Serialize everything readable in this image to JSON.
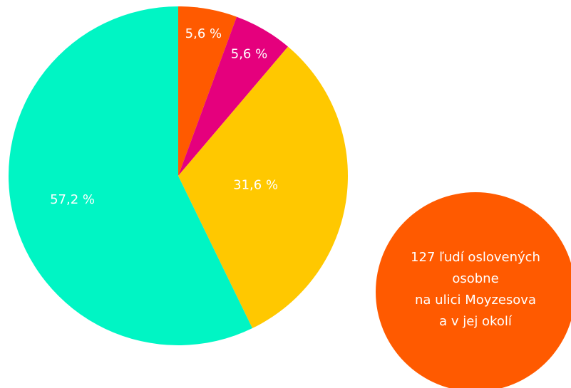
{
  "chart_data": {
    "type": "pie",
    "values": [
      5.6,
      5.6,
      31.6,
      57.2
    ],
    "value_labels": [
      "5,6 %",
      "5,6 %",
      "31,6 %",
      "57,2 %"
    ],
    "colors": [
      "#ff5a00",
      "#e5007d",
      "#ffc800",
      "#00f5c4"
    ],
    "annotation": {
      "lines": [
        "127 ľudí oslovených",
        "osobne",
        "na ulici Moyzesova",
        "a v jej okolí"
      ],
      "color": "#ff5a00"
    }
  }
}
